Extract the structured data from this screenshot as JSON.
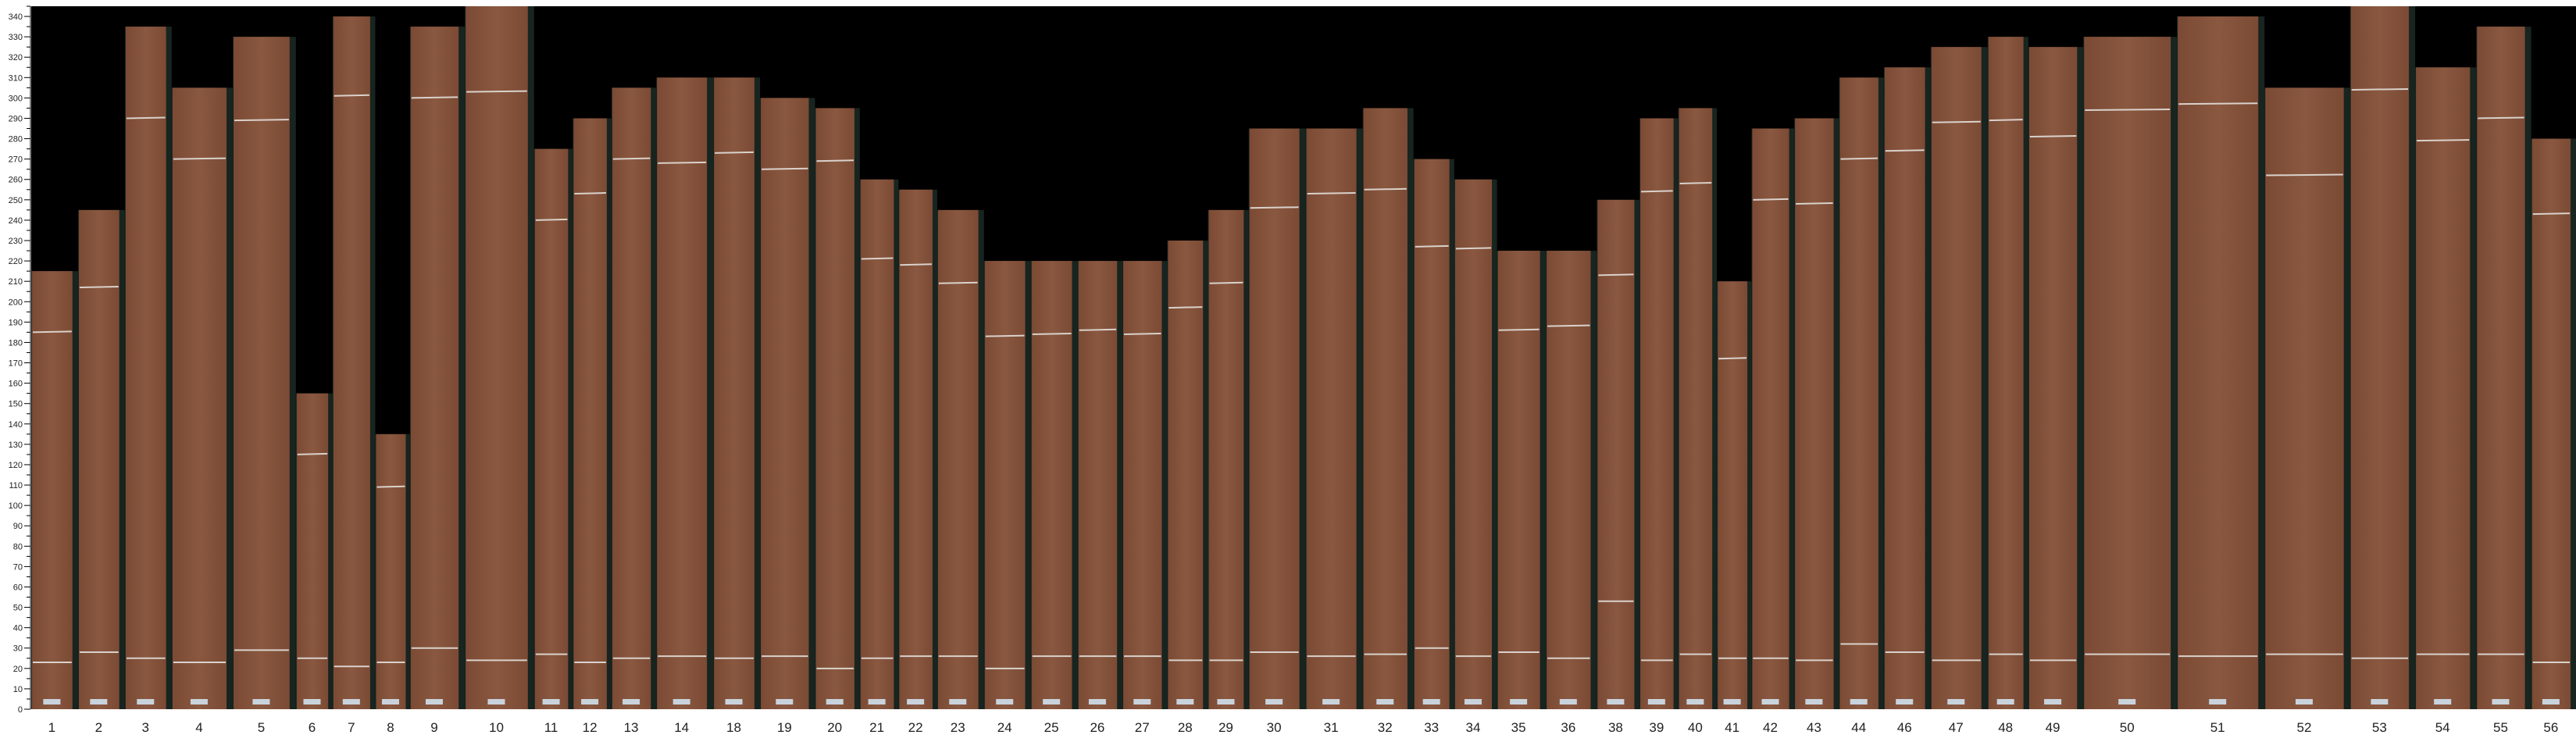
{
  "chart_data": {
    "type": "bar",
    "title": "",
    "xlabel": "",
    "ylabel": "",
    "ylim": [
      0,
      345
    ],
    "y_tick_step": 10,
    "y_minor_tick_step": 5,
    "grid": false,
    "colors": {
      "plot_background": "#000000",
      "wood": "#7b4a34",
      "wood_light": "#8a5840",
      "gap_strip": "#17241f",
      "cut_line": "#d9d2cc",
      "tag": "#c9d3dc"
    },
    "categories": [
      "1",
      "2",
      "3",
      "4",
      "5",
      "6",
      "7",
      "8",
      "9",
      "10",
      "11",
      "12",
      "13",
      "14",
      "18",
      "19",
      "20",
      "21",
      "22",
      "23",
      "24",
      "25",
      "26",
      "27",
      "28",
      "29",
      "30",
      "31",
      "32",
      "33",
      "34",
      "35",
      "36",
      "38",
      "39",
      "40",
      "41",
      "42",
      "43",
      "44",
      "46",
      "47",
      "48",
      "49",
      "50",
      "51",
      "52",
      "53",
      "54",
      "55",
      "56"
    ],
    "values": [
      215,
      245,
      335,
      305,
      330,
      155,
      340,
      135,
      335,
      345,
      275,
      290,
      305,
      310,
      310,
      300,
      295,
      260,
      255,
      245,
      220,
      220,
      220,
      220,
      230,
      245,
      285,
      285,
      295,
      270,
      260,
      225,
      225,
      250,
      290,
      295,
      210,
      285,
      290,
      310,
      315,
      325,
      330,
      325,
      330,
      340,
      305,
      345,
      315,
      335,
      280
    ],
    "upper_cut": [
      185,
      207,
      290,
      270,
      289,
      125,
      301,
      109,
      300,
      303,
      240,
      253,
      270,
      268,
      273,
      265,
      269,
      221,
      218,
      209,
      183,
      184,
      186,
      184,
      197,
      209,
      246,
      253,
      255,
      227,
      226,
      186,
      188,
      213,
      254,
      258,
      172,
      250,
      248,
      270,
      274,
      288,
      289,
      281,
      294,
      297,
      262,
      304,
      279,
      290,
      243
    ],
    "lower_cut": [
      23,
      28,
      25,
      23,
      29,
      25,
      21,
      23,
      30,
      24,
      27,
      23,
      25,
      26,
      25,
      26,
      20,
      25,
      26,
      26,
      20,
      26,
      26,
      26,
      24,
      24,
      28,
      26,
      27,
      30,
      26,
      28,
      25,
      53,
      24,
      27,
      25,
      25,
      24,
      32,
      28,
      24,
      27,
      24,
      27,
      26,
      27,
      25,
      27,
      27,
      23
    ],
    "widths": [
      23,
      23,
      23,
      30,
      31,
      18,
      21,
      17,
      27,
      34,
      19,
      19,
      22,
      28,
      23,
      27,
      22,
      19,
      19,
      23,
      23,
      23,
      22,
      22,
      20,
      20,
      28,
      28,
      25,
      20,
      21,
      24,
      25,
      21,
      19,
      19,
      17,
      21,
      22,
      22,
      23,
      28,
      20,
      27,
      46,
      43,
      42,
      32,
      30,
      27,
      22
    ]
  }
}
